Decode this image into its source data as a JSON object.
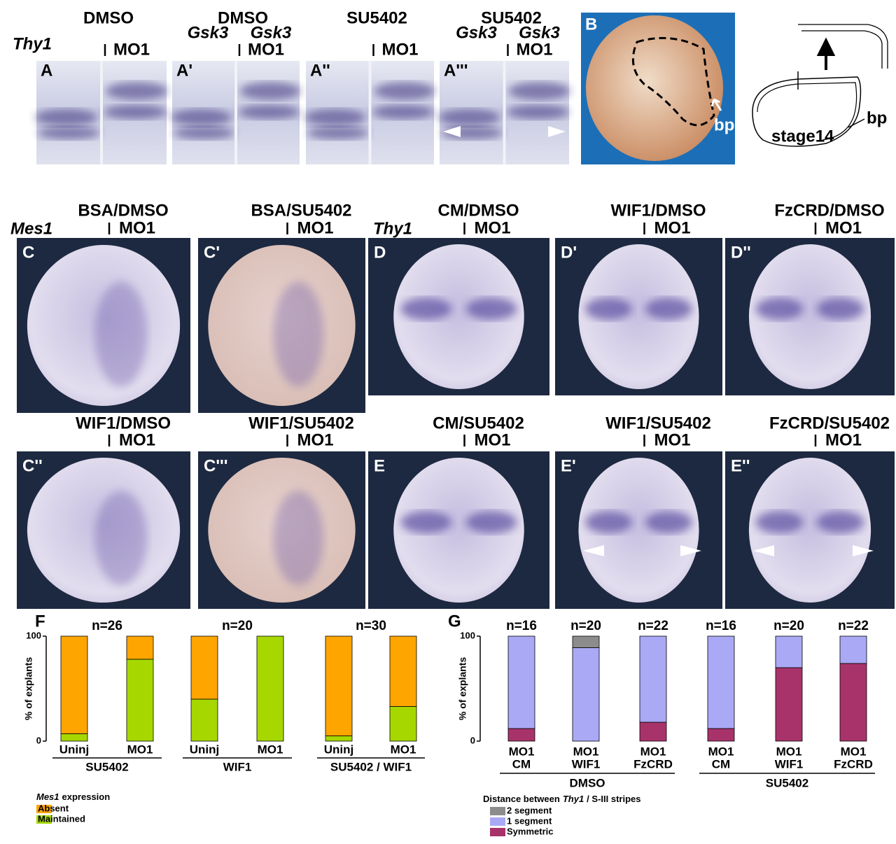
{
  "row1": {
    "gene": "Thy1",
    "panels": [
      {
        "letter": "A",
        "title": "DMSO",
        "mo1": "MO1"
      },
      {
        "letter": "A'",
        "title": "DMSO",
        "left_label": "Gsk3",
        "right_label": "Gsk3",
        "mo1": "MO1"
      },
      {
        "letter": "A''",
        "title": "SU5402",
        "mo1": "MO1"
      },
      {
        "letter": "A'''",
        "title": "SU5402",
        "left_label": "Gsk3",
        "right_label": "Gsk3",
        "mo1": "MO1"
      }
    ]
  },
  "panel_b": {
    "letter": "B",
    "label": "bp"
  },
  "diagram": {
    "stage": "stage14",
    "label": "bp"
  },
  "row2": {
    "gene_left": "Mes1",
    "gene_right": "Thy1",
    "panels": [
      {
        "letter": "C",
        "title": "BSA/DMSO",
        "mo1": "MO1"
      },
      {
        "letter": "C'",
        "title": "BSA/SU5402",
        "mo1": "MO1"
      },
      {
        "letter": "D",
        "title": "CM/DMSO",
        "mo1": "MO1"
      },
      {
        "letter": "D'",
        "title": "WIF1/DMSO",
        "mo1": "MO1"
      },
      {
        "letter": "D''",
        "title": "FzCRD/DMSO",
        "mo1": "MO1"
      }
    ]
  },
  "row3": {
    "panels": [
      {
        "letter": "C''",
        "title": "WIF1/DMSO",
        "mo1": "MO1"
      },
      {
        "letter": "C'''",
        "title": "WIF1/SU5402",
        "mo1": "MO1"
      },
      {
        "letter": "E",
        "title": "CM/SU5402",
        "mo1": "MO1"
      },
      {
        "letter": "E'",
        "title": "WIF1/SU5402",
        "mo1": "MO1"
      },
      {
        "letter": "E''",
        "title": "FzCRD/SU5402",
        "mo1": "MO1"
      }
    ]
  },
  "chart_data": [
    {
      "type": "stacked-bar",
      "panel": "F",
      "ylabel": "% of explants",
      "ylim": [
        0,
        100
      ],
      "yticks": [
        0,
        100
      ],
      "groups": [
        {
          "name": "SU5402",
          "n": "n=26",
          "categories": [
            "Uninj",
            "MO1"
          ]
        },
        {
          "name": "WIF1",
          "n": "n=20",
          "categories": [
            "Uninj",
            "MO1"
          ]
        },
        {
          "name": "SU5402 / WIF1",
          "n": "n=30",
          "categories": [
            "Uninj",
            "MO1"
          ]
        }
      ],
      "legend_title": [
        "Mes1",
        "expression"
      ],
      "series": [
        {
          "name": "Absent",
          "color": "#ffa500",
          "values": [
            93,
            22,
            60,
            0,
            95,
            67
          ]
        },
        {
          "name": "Maintained",
          "color": "#a6d800",
          "values": [
            7,
            78,
            40,
            100,
            5,
            33
          ]
        }
      ]
    },
    {
      "type": "stacked-bar",
      "panel": "G",
      "ylabel": "% of explants",
      "ylim": [
        0,
        100
      ],
      "yticks": [
        0,
        100
      ],
      "n_labels": [
        "n=16",
        "n=20",
        "n=22",
        "n=16",
        "n=20",
        "n=22"
      ],
      "groups": [
        {
          "name": "DMSO",
          "categories": [
            [
              "MO1",
              "CM"
            ],
            [
              "MO1",
              "WIF1"
            ],
            [
              "MO1",
              "FzCRD"
            ]
          ]
        },
        {
          "name": "SU5402",
          "categories": [
            [
              "MO1",
              "CM"
            ],
            [
              "MO1",
              "WIF1"
            ],
            [
              "MO1",
              "FzCRD"
            ]
          ]
        }
      ],
      "legend_title": [
        "Distance between",
        "Thy1",
        "/ S-III stripes"
      ],
      "series": [
        {
          "name": "2 segment",
          "color": "#8c8c8c",
          "values": [
            0,
            11,
            0,
            0,
            0,
            0
          ]
        },
        {
          "name": "1 segment",
          "color": "#a9a9f5",
          "values": [
            88,
            89,
            82,
            88,
            30,
            26
          ]
        },
        {
          "name": "Symmetric",
          "color": "#a8336a",
          "values": [
            12,
            0,
            18,
            12,
            70,
            74
          ]
        }
      ]
    }
  ]
}
